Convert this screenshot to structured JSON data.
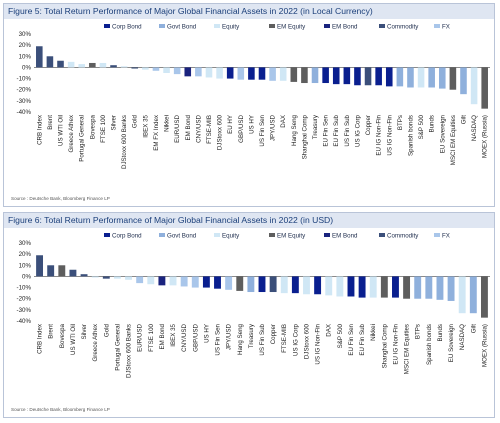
{
  "colors": {
    "Corp Bond": "#0a1f8f",
    "Govt Bond": "#8fb0dc",
    "Equity": "#d0e7f5",
    "EM Equity": "#5e5e5e",
    "EM Bond": "#1a237e",
    "Commodity": "#3b4f7a",
    "FX": "#a9c6ea"
  },
  "chart_data": [
    {
      "type": "bar",
      "title": "Figure 5: Total Return Performance of Major Global Financial Assets in 2022 (in Local Currency)",
      "source": "Source : Deutsche Bank, Bloomberg Finance LP",
      "legend": [
        "Corp Bond",
        "Govt Bond",
        "Equity",
        "EM Equity",
        "EM Bond",
        "Commodity",
        "FX"
      ],
      "legend_position": "top",
      "ylim": [
        -40,
        30
      ],
      "yticks": [
        "30%",
        "20%",
        "10%",
        "0%",
        "-10%",
        "-20%",
        "-30%",
        "-40%"
      ],
      "grid": false,
      "categories": [
        "CRB Index",
        "Brent",
        "US WTI Oil",
        "Greece Athex",
        "Portugal General",
        "Bovespa",
        "FTSE 100",
        "Silver",
        "DJStoxx 600 Banks",
        "Gold",
        "IBEX 35",
        "EM FX Index",
        "Nikkei",
        "EUR/USD",
        "EM Bond",
        "CNY/USD",
        "FTSE-MIB",
        "DJStoxx 600",
        "EU HY",
        "GBP/USD",
        "US HY",
        "US Fin Sen",
        "JPY/USD",
        "DAX",
        "Hang Seng",
        "Shanghai Comp",
        "Treasury",
        "EU Fin Sen",
        "EU Fin Sub",
        "US Fin Sub",
        "US IG Corp",
        "Copper",
        "EU IG Non-Fin",
        "US IG Non-Fin",
        "BTPs",
        "Spanish bonds",
        "S&P 500",
        "Bunds",
        "EU Sovereign",
        "MSCI EM Equities",
        "Gilt",
        "NASDAQ",
        "MOEX (Russia)"
      ],
      "asset_class": [
        "Commodity",
        "Commodity",
        "Commodity",
        "Equity",
        "Equity",
        "EM Equity",
        "Equity",
        "Commodity",
        "Equity",
        "Commodity",
        "Equity",
        "FX",
        "Equity",
        "FX",
        "EM Bond",
        "FX",
        "Equity",
        "Equity",
        "Corp Bond",
        "FX",
        "Corp Bond",
        "Corp Bond",
        "FX",
        "Equity",
        "EM Equity",
        "EM Equity",
        "Govt Bond",
        "Corp Bond",
        "Corp Bond",
        "Corp Bond",
        "Corp Bond",
        "Commodity",
        "Corp Bond",
        "Corp Bond",
        "Govt Bond",
        "Govt Bond",
        "Equity",
        "Govt Bond",
        "Govt Bond",
        "EM Equity",
        "Govt Bond",
        "Equity",
        "EM Equity"
      ],
      "values": [
        19,
        10,
        6,
        5,
        3,
        4,
        4,
        2,
        1,
        -1,
        -2,
        -3,
        -5,
        -6,
        -8,
        -8,
        -9,
        -10,
        -10,
        -11,
        -11,
        -11,
        -12,
        -12,
        -13,
        -14,
        -14,
        -14,
        -15,
        -15,
        -16,
        -16,
        -16,
        -17,
        -17,
        -18,
        -18,
        -18,
        -19,
        -20,
        -24,
        -33,
        -37
      ]
    },
    {
      "type": "bar",
      "title": "Figure 6: Total Return Performance of Major Global Financial Assets in 2022 (in USD)",
      "source": "Source : Deutsche Bank, Bloomberg Finance LP",
      "legend": [
        "Corp Bond",
        "Govt Bond",
        "Equity",
        "EM Equity",
        "EM Bond",
        "Commodity",
        "FX"
      ],
      "legend_position": "top",
      "ylim": [
        -40,
        30
      ],
      "yticks": [
        "30%",
        "20%",
        "10%",
        "0%",
        "-10%",
        "-20%",
        "-30%",
        "-40%"
      ],
      "grid": false,
      "categories": [
        "CRB Index",
        "Brent",
        "Bovespa",
        "US WTI Oil",
        "Silver",
        "Greece Athex",
        "Gold",
        "Portugal General",
        "DJStoxx 600 Banks",
        "EUR/USD",
        "FTSE 100",
        "EM Bond",
        "IBEX 35",
        "CNY/USD",
        "GBP/USD",
        "US HY",
        "US Fin Sen",
        "JPY/USD",
        "Hang Seng",
        "Treasury",
        "US Fin Sub",
        "Copper",
        "FTSE-MIB",
        "US IG Corp",
        "DJStoxx 600",
        "US IG Non-Fin",
        "DAX",
        "S&P 500",
        "EU Fin Sen",
        "EU Fin Sub",
        "Nikkei",
        "Shanghai Comp",
        "EU IG Non-Fin",
        "MSCI EM Equities",
        "BTPs",
        "Spanish bonds",
        "Bunds",
        "EU Sovereign",
        "NASDAQ",
        "Gilt",
        "MOEX (Russia)"
      ],
      "asset_class": [
        "Commodity",
        "Commodity",
        "EM Equity",
        "Commodity",
        "Commodity",
        "Equity",
        "Commodity",
        "Equity",
        "Equity",
        "FX",
        "Equity",
        "EM Bond",
        "Equity",
        "FX",
        "FX",
        "Corp Bond",
        "Corp Bond",
        "FX",
        "EM Equity",
        "Govt Bond",
        "Corp Bond",
        "Commodity",
        "Equity",
        "Corp Bond",
        "Equity",
        "Corp Bond",
        "Equity",
        "Equity",
        "Corp Bond",
        "Corp Bond",
        "Equity",
        "EM Equity",
        "Corp Bond",
        "EM Equity",
        "Govt Bond",
        "Govt Bond",
        "Govt Bond",
        "Govt Bond",
        "Equity",
        "Govt Bond",
        "EM Equity"
      ],
      "values": [
        19,
        10,
        10,
        6,
        2,
        -1,
        -2,
        -2,
        -3,
        -6,
        -7,
        -8,
        -8,
        -9,
        -10,
        -10,
        -11,
        -12,
        -13,
        -14,
        -14,
        -14,
        -15,
        -15,
        -16,
        -16,
        -17,
        -18,
        -18,
        -19,
        -19,
        -19,
        -19,
        -20,
        -20,
        -20,
        -21,
        -22,
        -33,
        -33,
        -37
      ]
    }
  ]
}
